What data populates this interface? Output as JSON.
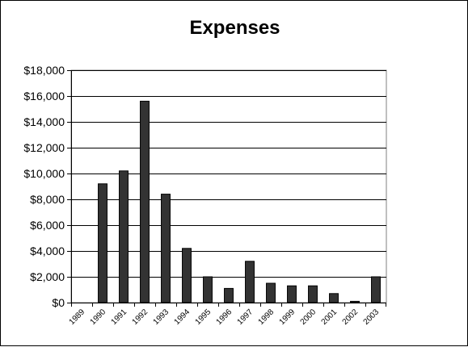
{
  "chart_data": {
    "type": "bar",
    "title": "Expenses",
    "xlabel": "",
    "ylabel": "",
    "categories": [
      "1989",
      "1990",
      "1991",
      "1992",
      "1993",
      "1994",
      "1995",
      "1996",
      "1997",
      "1998",
      "1999",
      "2000",
      "2001",
      "2002",
      "2003"
    ],
    "values": [
      0,
      9200,
      10200,
      15600,
      8400,
      4200,
      2000,
      1100,
      3200,
      1500,
      1300,
      1300,
      700,
      100,
      2000
    ],
    "ylim": [
      0,
      18000
    ],
    "yticks": [
      0,
      2000,
      4000,
      6000,
      8000,
      10000,
      12000,
      14000,
      16000,
      18000
    ],
    "ytick_labels": [
      "$0",
      "$2,000",
      "$4,000",
      "$6,000",
      "$8,000",
      "$10,000",
      "$12,000",
      "$14,000",
      "$16,000",
      "$18,000"
    ],
    "grid": true,
    "legend": "none",
    "bar_color": "#333333"
  }
}
